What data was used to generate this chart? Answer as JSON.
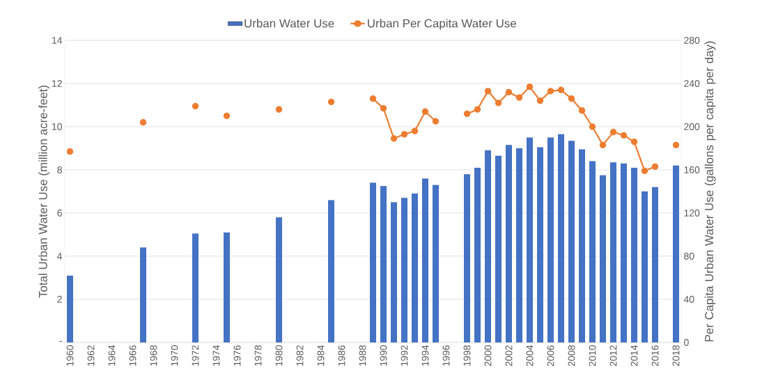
{
  "chart_data": {
    "type": "bar",
    "categories": [
      "1960",
      null,
      "1962",
      null,
      "1964",
      null,
      "1966",
      null,
      "1968",
      null,
      "1970",
      null,
      "1972",
      null,
      "1974",
      null,
      "1976",
      null,
      "1978",
      null,
      "1980",
      null,
      "1982",
      null,
      "1984",
      null,
      "1986",
      null,
      "1988",
      null,
      "1990",
      null,
      "1992",
      null,
      "1994",
      null,
      "1996",
      null,
      "1998",
      null,
      "2000",
      null,
      "2002",
      null,
      "2004",
      null,
      "2006",
      null,
      "2008",
      null,
      "2010",
      null,
      "2012",
      null,
      "2014",
      null,
      "2016",
      null,
      "2018"
    ],
    "series": [
      {
        "name": "Urban Water Use",
        "axis": "y",
        "color": "#4472c4",
        "values": [
          3.1,
          null,
          null,
          null,
          null,
          null,
          null,
          4.4,
          null,
          null,
          null,
          null,
          5.05,
          null,
          null,
          5.1,
          null,
          null,
          null,
          null,
          5.8,
          null,
          null,
          null,
          null,
          6.6,
          null,
          null,
          null,
          7.4,
          7.25,
          6.5,
          6.7,
          6.9,
          7.6,
          7.3,
          null,
          null,
          7.8,
          8.1,
          8.9,
          8.65,
          9.15,
          9.0,
          9.5,
          9.05,
          9.5,
          9.65,
          9.35,
          8.95,
          8.4,
          7.75,
          8.35,
          8.3,
          8.1,
          7.0,
          7.2,
          null,
          8.2
        ]
      },
      {
        "name": "Urban Per Capita Water Use",
        "type": "line",
        "axis": "y2",
        "color": "#ed7d31",
        "marker": "circle",
        "line_style": "solid",
        "values": [
          177,
          null,
          null,
          null,
          null,
          null,
          null,
          204,
          null,
          null,
          null,
          null,
          219,
          null,
          null,
          210,
          null,
          null,
          null,
          null,
          216,
          null,
          null,
          null,
          null,
          223,
          null,
          null,
          null,
          226,
          217,
          189,
          193,
          196,
          214,
          205,
          null,
          null,
          212,
          216,
          233,
          222,
          232,
          227,
          237,
          224,
          233,
          234,
          226,
          215,
          200,
          183,
          195,
          192,
          186,
          159,
          163,
          null,
          183
        ]
      }
    ],
    "ylabel": "Total Urban Water Use (million acre-feet)",
    "y2label": "Per Capita Urban Water Use (gallons per capita per day)",
    "ylim": [
      0,
      14
    ],
    "yticks": [
      {
        "value": 0,
        "label": "-"
      },
      2,
      4,
      6,
      8,
      10,
      12,
      14
    ],
    "y2lim": [
      0,
      280
    ],
    "y2ticks": [
      0,
      40,
      80,
      120,
      160,
      200,
      240,
      280
    ],
    "grid": "y",
    "legend": "top"
  }
}
